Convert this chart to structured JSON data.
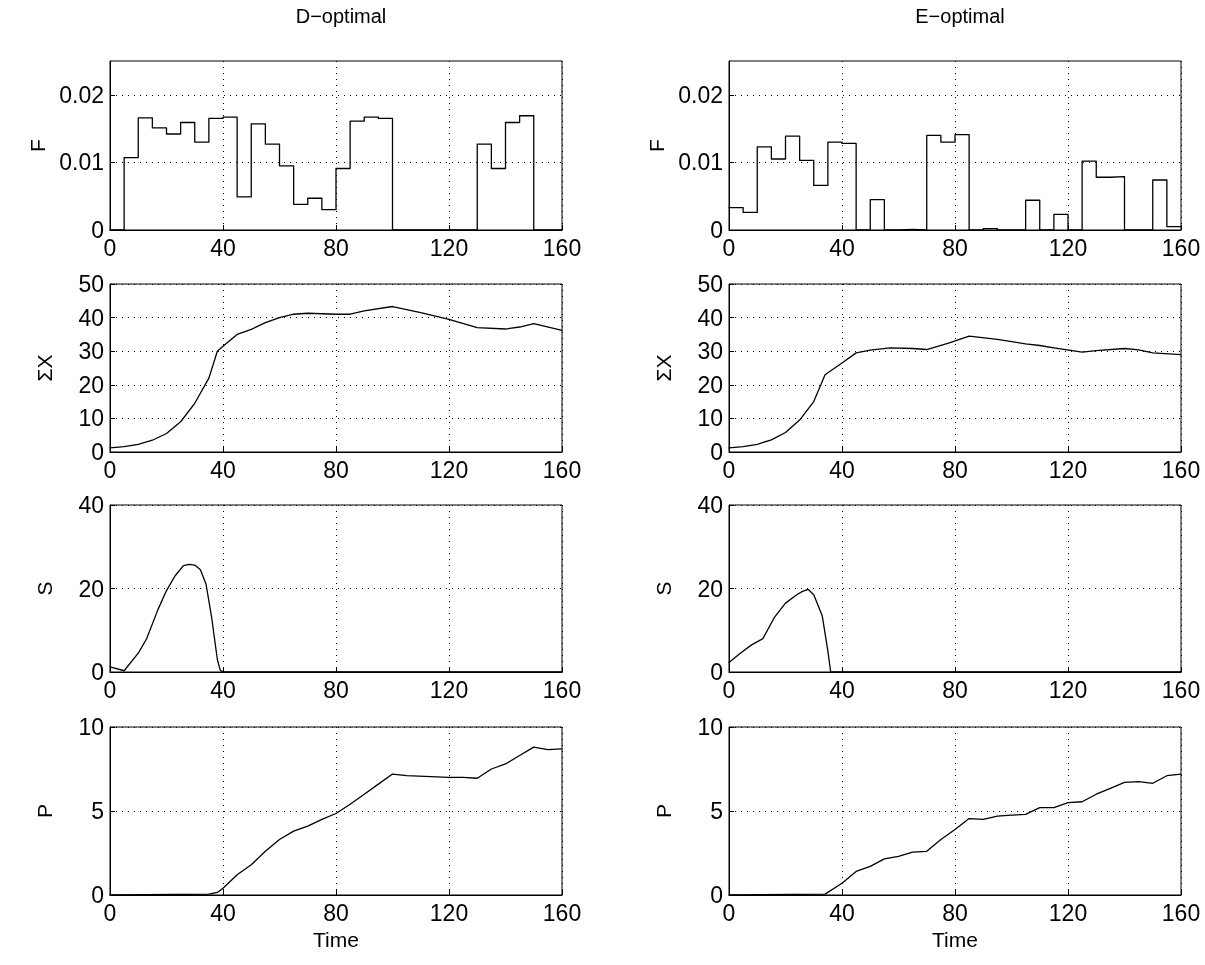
{
  "chart_data": [
    {
      "type": "step",
      "title": "D−optimal",
      "ylabel": "F",
      "x": [
        0,
        5,
        10,
        15,
        20,
        25,
        30,
        35,
        40,
        45,
        50,
        55,
        60,
        65,
        70,
        75,
        80,
        85,
        90,
        95,
        100,
        105,
        110,
        115,
        120,
        125,
        130,
        135,
        140,
        145,
        150,
        155,
        160
      ],
      "series": [
        {
          "color": "#000000",
          "values": [
            0,
            0.0107,
            0.0166,
            0.0151,
            0.0142,
            0.0159,
            0.013,
            0.0165,
            0.0167,
            0.0049,
            0.0157,
            0.0127,
            0.0095,
            0.0038,
            0.0047,
            0.003,
            0.0091,
            0.0161,
            0.0167,
            0.0165,
            0,
            0,
            0,
            0,
            0,
            0,
            0.0127,
            0.0091,
            0.0159,
            0.0169,
            0,
            0,
            0
          ]
        }
      ],
      "xlim": [
        0,
        160
      ],
      "xticks": [
        0,
        40,
        80,
        120,
        160
      ],
      "ylim": [
        0,
        0.025
      ],
      "yticks": [
        0,
        0.01,
        0.02
      ],
      "grid": true,
      "marker": "none",
      "line_style": "solid"
    },
    {
      "type": "step",
      "title": "E−optimal",
      "ylabel": "F",
      "x": [
        0,
        5,
        10,
        15,
        20,
        25,
        30,
        35,
        40,
        45,
        50,
        55,
        60,
        65,
        70,
        75,
        80,
        85,
        90,
        95,
        100,
        105,
        110,
        115,
        120,
        125,
        130,
        135,
        140,
        145,
        150,
        155,
        160
      ],
      "series": [
        {
          "color": "#000000",
          "values": [
            0.0033,
            0.0026,
            0.0123,
            0.0105,
            0.0139,
            0.0103,
            0.0066,
            0.013,
            0.0128,
            0,
            0.0045,
            0,
            0.0001,
            0,
            0.014,
            0.013,
            0.0141,
            0,
            0.0002,
            0,
            0,
            0.0044,
            0,
            0.0023,
            0,
            0.0102,
            0.0078,
            0.0079,
            0,
            0,
            0.0074,
            0.0005,
            0.0005
          ]
        }
      ],
      "xlim": [
        0,
        160
      ],
      "xticks": [
        0,
        40,
        80,
        120,
        160
      ],
      "ylim": [
        0,
        0.025
      ],
      "yticks": [
        0,
        0.01,
        0.02
      ],
      "grid": true,
      "marker": "none",
      "line_style": "solid"
    },
    {
      "type": "line",
      "ylabel": "ΣX",
      "x": [
        0,
        5,
        10,
        15,
        20,
        25,
        30,
        35,
        38,
        40,
        45,
        50,
        55,
        60,
        65,
        70,
        80,
        85,
        90,
        100,
        110,
        120,
        130,
        140,
        145,
        150,
        160
      ],
      "series": [
        {
          "color": "#000000",
          "values": [
            1.2,
            1.6,
            2.3,
            3.5,
            5.5,
            9,
            14.5,
            22,
            30,
            31.5,
            35,
            36.5,
            38.5,
            40,
            41,
            41.3,
            41,
            41,
            42,
            43.3,
            41.5,
            39.5,
            37,
            36.6,
            37.2,
            38.2,
            36.2
          ]
        }
      ],
      "xlim": [
        0,
        160
      ],
      "xticks": [
        0,
        40,
        80,
        120,
        160
      ],
      "ylim": [
        0,
        50
      ],
      "yticks": [
        0,
        10,
        20,
        30,
        40,
        50
      ],
      "grid": true,
      "marker": "none",
      "line_style": "solid"
    },
    {
      "type": "line",
      "ylabel": "ΣX",
      "x": [
        0,
        5,
        10,
        15,
        20,
        25,
        30,
        34,
        40,
        45,
        50,
        57,
        65,
        70,
        78,
        85,
        95,
        105,
        110,
        115,
        125,
        130,
        140,
        145,
        150,
        160
      ],
      "series": [
        {
          "color": "#000000",
          "values": [
            1.2,
            1.6,
            2.3,
            3.6,
            5.8,
            9.5,
            15,
            23,
            26.5,
            29.5,
            30.3,
            31,
            30.8,
            30.5,
            32.5,
            34.5,
            33.5,
            32.2,
            31.7,
            31,
            29.7,
            30.2,
            30.8,
            30.4,
            29.5,
            29
          ]
        }
      ],
      "xlim": [
        0,
        160
      ],
      "xticks": [
        0,
        40,
        80,
        120,
        160
      ],
      "ylim": [
        0,
        50
      ],
      "yticks": [
        0,
        10,
        20,
        30,
        40,
        50
      ],
      "grid": true,
      "marker": "none",
      "line_style": "solid"
    },
    {
      "type": "line",
      "ylabel": "S",
      "x": [
        0,
        5,
        10,
        13,
        17,
        20,
        23,
        26,
        28,
        30,
        32,
        34,
        36,
        38,
        39,
        40,
        160
      ],
      "series": [
        {
          "color": "#000000",
          "values": [
            1.2,
            0.3,
            4.5,
            8,
            15,
            19.5,
            23,
            25.5,
            25.8,
            25.6,
            24.5,
            21,
            13,
            3,
            0.5,
            0,
            0
          ]
        }
      ],
      "xlim": [
        0,
        160
      ],
      "xticks": [
        0,
        40,
        80,
        120,
        160
      ],
      "ylim": [
        0,
        40
      ],
      "yticks": [
        0,
        20,
        40
      ],
      "grid": true,
      "marker": "none",
      "line_style": "solid"
    },
    {
      "type": "line",
      "ylabel": "S",
      "x": [
        0,
        4,
        8,
        12,
        16,
        20,
        24,
        26,
        28,
        30,
        33,
        35,
        36,
        160
      ],
      "series": [
        {
          "color": "#000000",
          "values": [
            2.3,
            4.5,
            6.5,
            8,
            13,
            16.5,
            18.5,
            19.3,
            19.8,
            18.5,
            13.5,
            5,
            0,
            0
          ]
        }
      ],
      "xlim": [
        0,
        160
      ],
      "xticks": [
        0,
        40,
        80,
        120,
        160
      ],
      "ylim": [
        0,
        40
      ],
      "yticks": [
        0,
        20,
        40
      ],
      "grid": true,
      "marker": "none",
      "line_style": "solid"
    },
    {
      "type": "line",
      "xlabel": "Time",
      "ylabel": "P",
      "x": [
        0,
        35,
        38,
        40,
        45,
        50,
        55,
        60,
        65,
        70,
        75,
        80,
        85,
        90,
        95,
        100,
        105,
        120,
        125,
        130,
        135,
        140,
        145,
        150,
        155,
        160
      ],
      "series": [
        {
          "color": "#000000",
          "values": [
            0,
            0.05,
            0.15,
            0.4,
            1.2,
            1.8,
            2.6,
            3.3,
            3.8,
            4.1,
            4.5,
            4.85,
            5.4,
            6,
            6.6,
            7.2,
            7.1,
            7.0,
            7.0,
            6.95,
            7.5,
            7.8,
            8.3,
            8.8,
            8.65,
            8.7
          ]
        }
      ],
      "xlim": [
        0,
        160
      ],
      "xticks": [
        0,
        40,
        80,
        120,
        160
      ],
      "ylim": [
        0,
        10
      ],
      "yticks": [
        0,
        5,
        10
      ],
      "grid": true,
      "marker": "none",
      "line_style": "solid"
    },
    {
      "type": "line",
      "xlabel": "Time",
      "ylabel": "P",
      "x": [
        0,
        34,
        40,
        45,
        50,
        55,
        60,
        65,
        70,
        75,
        80,
        85,
        90,
        95,
        100,
        105,
        110,
        115,
        120,
        125,
        130,
        135,
        140,
        145,
        150,
        155,
        160
      ],
      "series": [
        {
          "color": "#000000",
          "values": [
            0,
            0.05,
            0.7,
            1.4,
            1.7,
            2.15,
            2.3,
            2.55,
            2.6,
            3.3,
            3.9,
            4.55,
            4.5,
            4.7,
            4.75,
            4.8,
            5.2,
            5.2,
            5.5,
            5.55,
            6,
            6.35,
            6.7,
            6.75,
            6.65,
            7.1,
            7.2
          ]
        }
      ],
      "xlim": [
        0,
        160
      ],
      "xticks": [
        0,
        40,
        80,
        120,
        160
      ],
      "ylim": [
        0,
        10
      ],
      "yticks": [
        0,
        5,
        10
      ],
      "grid": true,
      "marker": "none",
      "line_style": "solid"
    }
  ]
}
